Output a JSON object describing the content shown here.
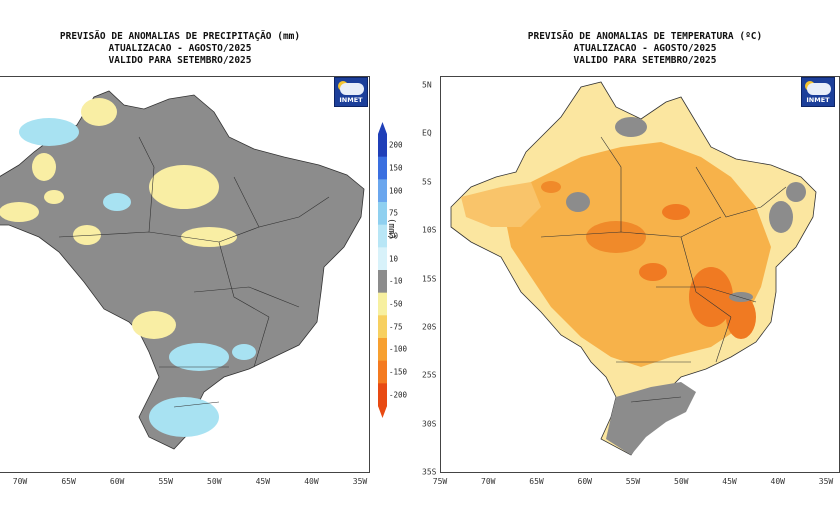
{
  "left_map": {
    "title_line1": "PREVISÃO DE ANOMALIAS DE PRECIPITAÇÃO (mm)",
    "title_line2": "ATUALIZACAO - AGOSTO/2025",
    "title_line3": "VALIDO PARA SETEMBRO/2025",
    "logo_text": "INMET",
    "x_ticks": [
      "70W",
      "65W",
      "60W",
      "55W",
      "50W",
      "45W",
      "40W",
      "35W"
    ],
    "legend": {
      "unit": "(mm)",
      "levels": [
        "200",
        "150",
        "100",
        "75",
        "50",
        "10",
        "-10",
        "-50",
        "-75",
        "-100",
        "-150",
        "-200"
      ],
      "colors": [
        "#1f3fb8",
        "#3a6fe0",
        "#6aa6ee",
        "#8fd0f0",
        "#b8e6f6",
        "#d8f2fa",
        "#8c8c8c",
        "#f7f0a0",
        "#f7d060",
        "#f7a030",
        "#f47a20",
        "#e84a12"
      ]
    }
  },
  "right_map": {
    "title_line1": "PREVISÃO DE ANOMALIAS DE TEMPERATURA (ºC)",
    "title_line2": "ATUALIZACAO - AGOSTO/2025",
    "title_line3": "VALIDO PARA SETEMBRO/2025",
    "logo_text": "INMET",
    "x_ticks": [
      "75W",
      "70W",
      "65W",
      "60W",
      "55W",
      "50W",
      "45W",
      "40W",
      "35W"
    ],
    "y_ticks": [
      "5N",
      "EQ",
      "5S",
      "10S",
      "15S",
      "20S",
      "25S",
      "30S",
      "35S"
    ]
  },
  "colors": {
    "neutral_gray": "#8c8c8c",
    "light_yellow": "#f9eea4",
    "light_blue": "#a8e2f2",
    "orange_light": "#f9c06a",
    "orange": "#f5a23a",
    "orange_dark": "#f07a22",
    "cream": "#fbe6a0"
  }
}
